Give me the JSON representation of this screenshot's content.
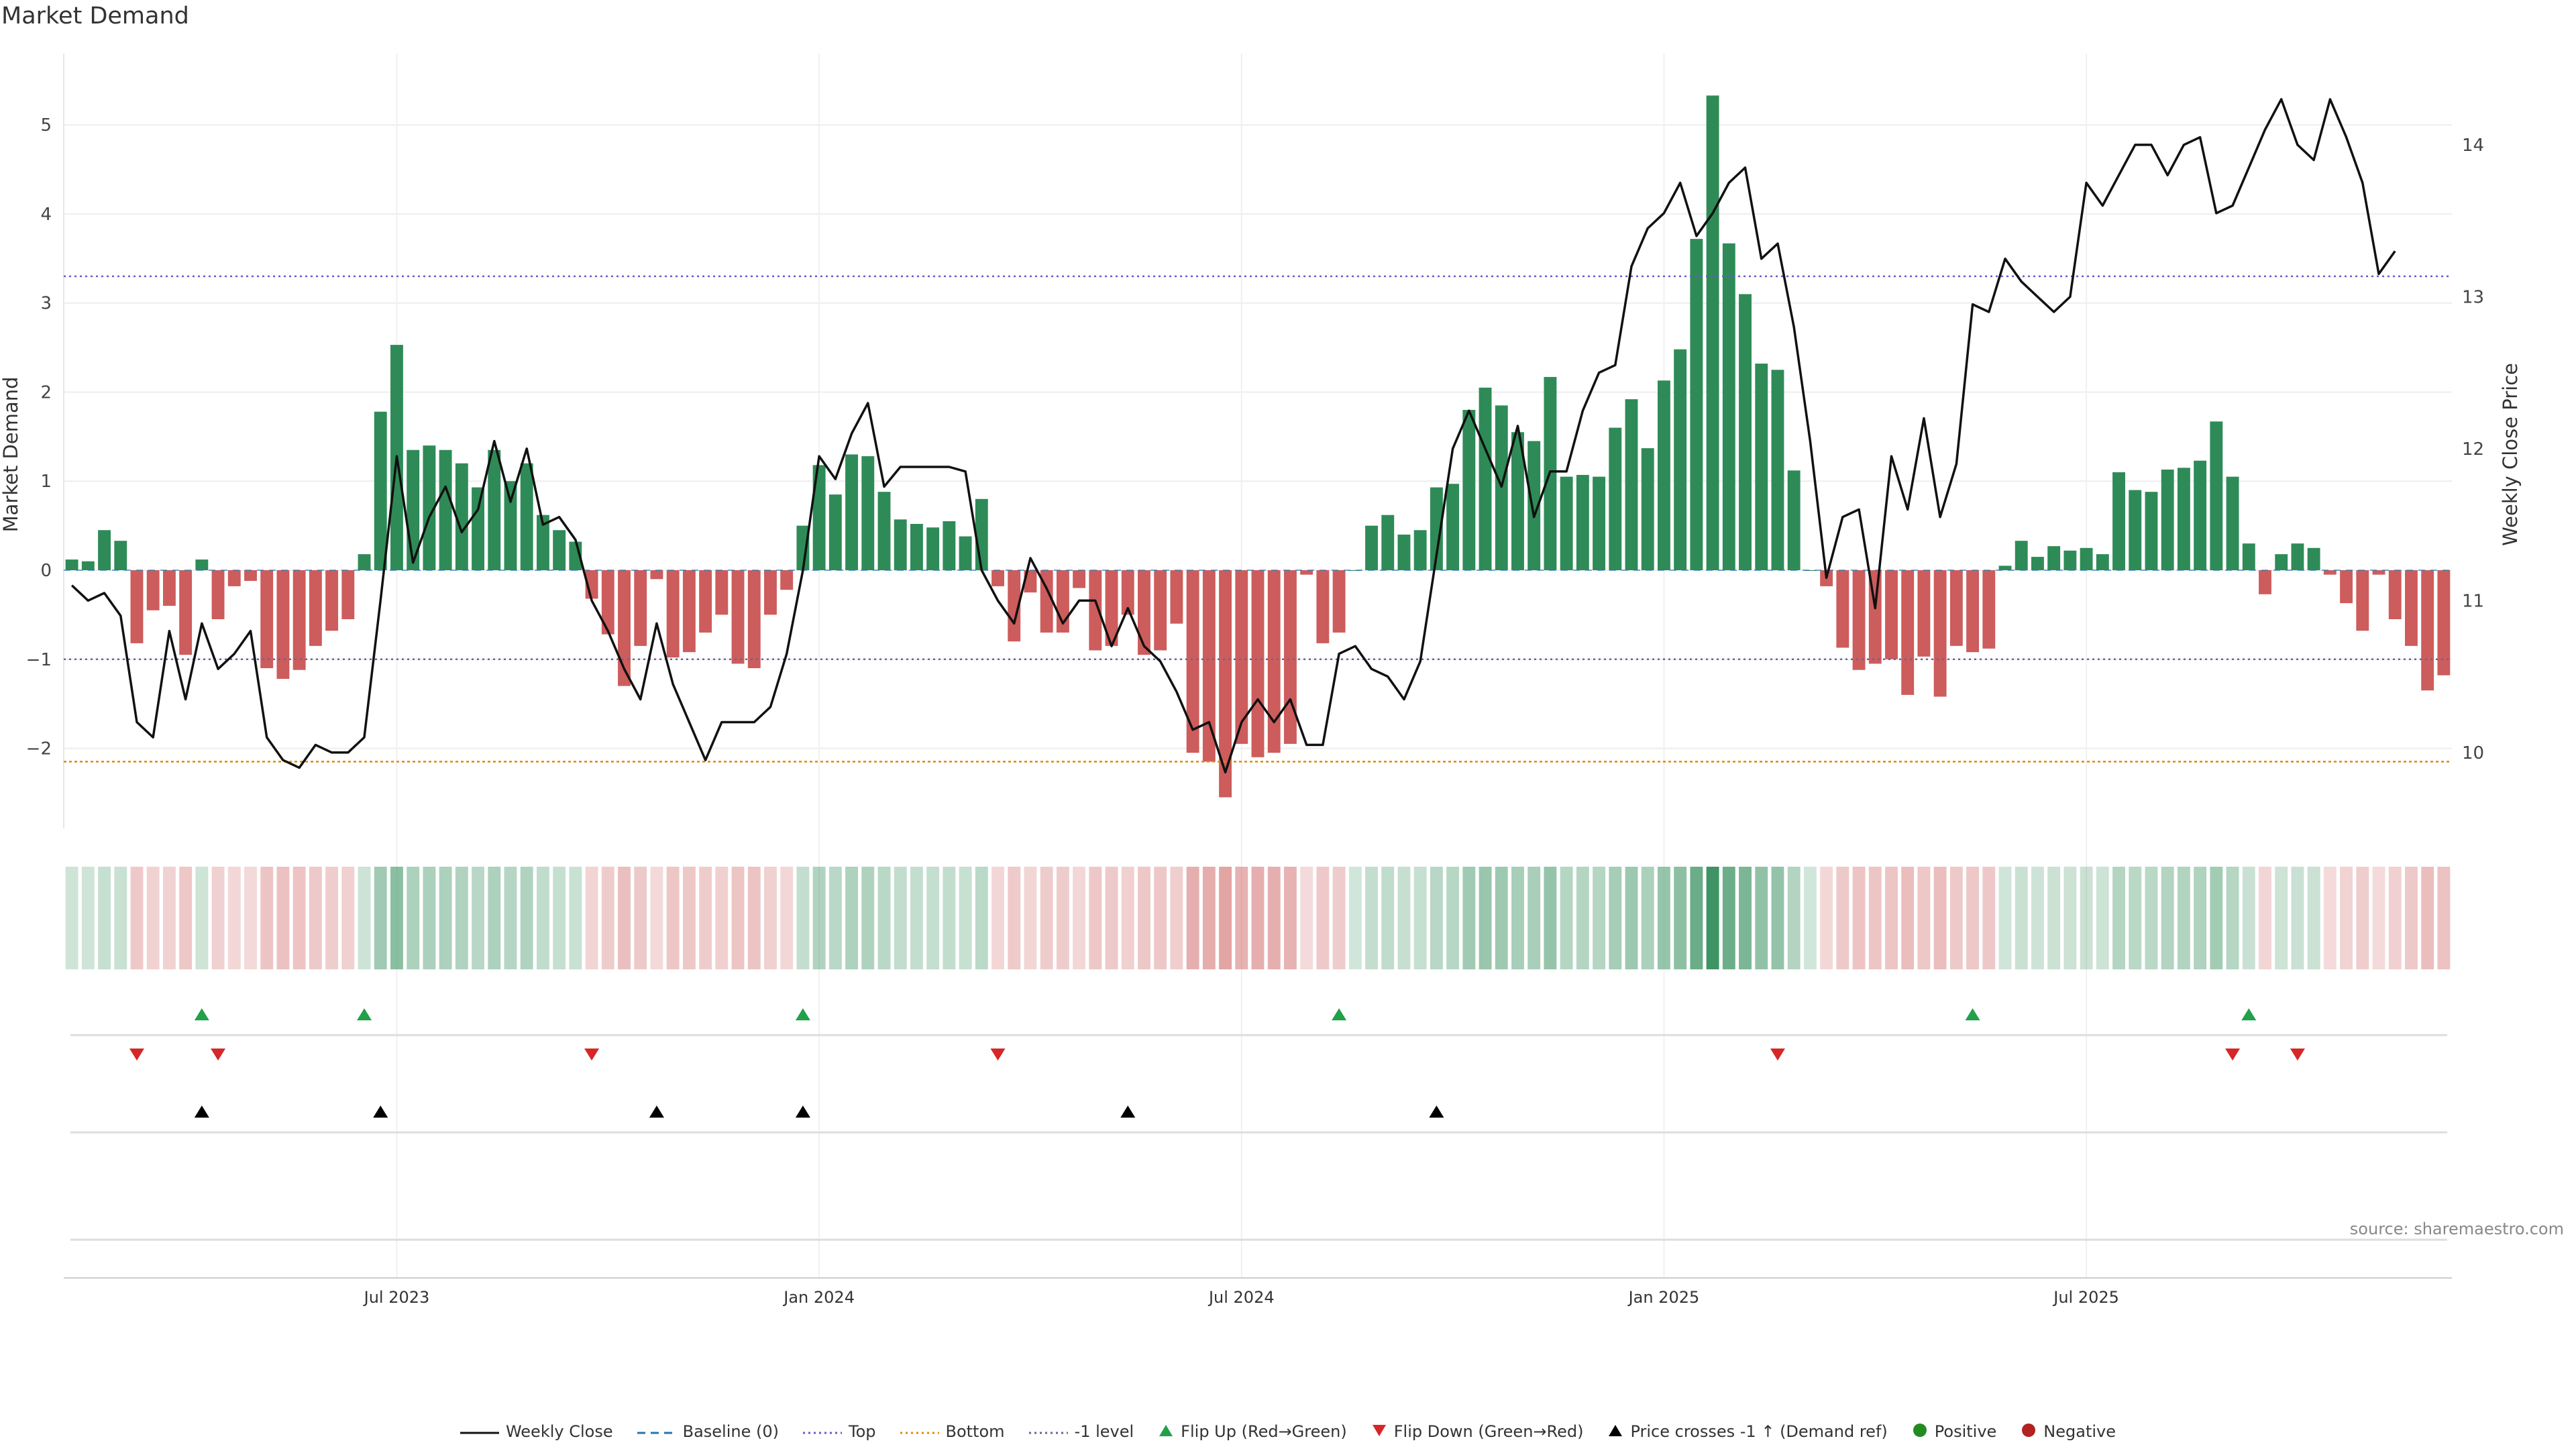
{
  "chart_data": {
    "type": "bar",
    "title": "Market Demand",
    "source": "source: sharemaestro.com",
    "ylabel_left": "Market Demand",
    "ylabel_right": "Weekly Close Price",
    "ylim_left": [
      -2.9,
      5.8
    ],
    "ylim_right": [
      9.5,
      14.6
    ],
    "yticks_left": [
      -2,
      -1,
      0,
      1,
      2,
      3,
      4,
      5
    ],
    "ytick_labels_left": [
      "−2",
      "−1",
      "0",
      "1",
      "2",
      "3",
      "4",
      "5"
    ],
    "yticks_right": [
      10,
      11,
      12,
      13,
      14
    ],
    "ytick_labels_right": [
      "10",
      "11",
      "12",
      "13",
      "14"
    ],
    "x_tick_indices": [
      20,
      46,
      72,
      98,
      124
    ],
    "x_tick_labels": [
      "Jul 2023",
      "Jan 2024",
      "Jul 2024",
      "Jan 2025",
      "Jul 2025"
    ],
    "levels": {
      "top": 3.3,
      "bottom": -2.15,
      "minus_one": -1,
      "baseline": 0
    },
    "colors": {
      "positive": "#2e8b57",
      "negative": "#cd5c5c",
      "price": "#111111",
      "flip_up": "#22a04a",
      "flip_down": "#d62728",
      "cross": "#000000",
      "top_line": "#6a5acd",
      "bottom_line": "#e08a00",
      "minus_one_line": "#666699",
      "baseline_line": "#1f77b4"
    },
    "demand": [
      0.12,
      0.1,
      0.45,
      0.33,
      -0.82,
      -0.45,
      -0.4,
      -0.95,
      0.12,
      -0.55,
      -0.18,
      -0.12,
      -1.1,
      -1.22,
      -1.12,
      -0.85,
      -0.68,
      -0.55,
      0.18,
      1.78,
      2.53,
      1.35,
      1.4,
      1.35,
      1.2,
      0.93,
      1.35,
      1.0,
      1.2,
      0.62,
      0.45,
      0.32,
      -0.32,
      -0.72,
      -1.3,
      -0.85,
      -0.1,
      -0.98,
      -0.92,
      -0.7,
      -0.5,
      -1.05,
      -1.1,
      -0.5,
      -0.22,
      0.5,
      1.18,
      0.85,
      1.3,
      1.28,
      0.88,
      0.57,
      0.52,
      0.48,
      0.55,
      0.38,
      0.8,
      -0.18,
      -0.8,
      -0.25,
      -0.7,
      -0.7,
      -0.2,
      -0.9,
      -0.85,
      -0.5,
      -0.95,
      -0.9,
      -0.6,
      -2.05,
      -2.15,
      -2.55,
      -1.95,
      -2.1,
      -2.05,
      -1.95,
      -0.05,
      -0.82,
      -0.7,
      0.0,
      0.5,
      0.62,
      0.4,
      0.45,
      0.93,
      0.97,
      1.8,
      2.05,
      1.85,
      1.55,
      1.45,
      2.17,
      1.05,
      1.07,
      1.05,
      1.6,
      1.92,
      1.37,
      2.13,
      2.48,
      3.72,
      5.33,
      3.67,
      3.1,
      2.32,
      2.25,
      1.12,
      0.0,
      -0.18,
      -0.87,
      -1.12,
      -1.05,
      -1.0,
      -1.4,
      -0.97,
      -1.42,
      -0.85,
      -0.92,
      -0.88,
      0.05,
      0.33,
      0.15,
      0.27,
      0.22,
      0.25,
      0.18,
      1.1,
      0.9,
      0.88,
      1.13,
      1.15,
      1.23,
      1.67,
      1.05,
      0.3,
      -0.27,
      0.18,
      0.3,
      0.25,
      -0.05,
      -0.37,
      -0.68,
      -0.05,
      -0.55,
      -0.85,
      -1.35,
      -1.18
    ],
    "price": [
      11.1,
      11.0,
      11.05,
      10.9,
      10.2,
      10.1,
      10.8,
      10.35,
      10.85,
      10.55,
      10.65,
      10.8,
      10.1,
      9.95,
      9.9,
      10.05,
      10.0,
      10.0,
      10.1,
      11.0,
      11.95,
      11.25,
      11.55,
      11.75,
      11.45,
      11.6,
      12.05,
      11.65,
      12.0,
      11.5,
      11.55,
      11.4,
      11.0,
      10.8,
      10.55,
      10.35,
      10.85,
      10.45,
      10.2,
      9.95,
      10.2,
      10.2,
      10.2,
      10.3,
      10.65,
      11.2,
      11.95,
      11.8,
      12.1,
      12.3,
      11.75,
      11.88,
      11.88,
      11.88,
      11.88,
      11.85,
      11.2,
      11.0,
      10.85,
      11.28,
      11.08,
      10.85,
      11.0,
      11.0,
      10.7,
      10.95,
      10.7,
      10.6,
      10.4,
      10.15,
      10.2,
      9.87,
      10.2,
      10.35,
      10.2,
      10.35,
      10.05,
      10.05,
      10.65,
      10.7,
      10.55,
      10.5,
      10.35,
      10.6,
      11.3,
      12.0,
      12.25,
      12.0,
      11.75,
      12.15,
      11.55,
      11.85,
      11.85,
      12.25,
      12.5,
      12.55,
      13.2,
      13.45,
      13.55,
      13.75,
      13.4,
      13.55,
      13.75,
      13.85,
      13.25,
      13.35,
      12.8,
      12.05,
      11.15,
      11.55,
      11.6,
      10.95,
      11.95,
      11.6,
      12.2,
      11.55,
      11.9,
      12.95,
      12.9,
      13.25,
      13.1,
      13.0,
      12.9,
      13.0,
      13.75,
      13.6,
      13.8,
      14.0,
      14.0,
      13.8,
      14.0,
      14.05,
      13.55,
      13.6,
      13.85,
      14.1,
      14.3,
      14.0,
      13.9,
      14.3,
      14.05,
      13.75,
      13.15,
      13.3
    ],
    "flip_up_indices": [
      8,
      18,
      45,
      78,
      117,
      134
    ],
    "flip_down_indices": [
      4,
      9,
      32,
      57,
      105,
      133,
      137
    ],
    "price_cross_indices": [
      8,
      19,
      36,
      45,
      65,
      84
    ],
    "legend": [
      {
        "kind": "line-solid",
        "label": "Weekly Close"
      },
      {
        "kind": "line-dashed",
        "label": "Baseline (0)"
      },
      {
        "kind": "line-dotted-top",
        "label": "Top"
      },
      {
        "kind": "line-dotted-bottom",
        "label": "Bottom"
      },
      {
        "kind": "line-dotted-minus",
        "label": "-1 level"
      },
      {
        "kind": "tri-up-green",
        "label": "Flip Up (Red→Green)"
      },
      {
        "kind": "tri-down-red",
        "label": "Flip Down (Green→Red)"
      },
      {
        "kind": "tri-up-black",
        "label": "Price crosses -1 ↑ (Demand ref)"
      },
      {
        "kind": "dot-green",
        "label": "Positive"
      },
      {
        "kind": "dot-red",
        "label": "Negative"
      }
    ]
  }
}
